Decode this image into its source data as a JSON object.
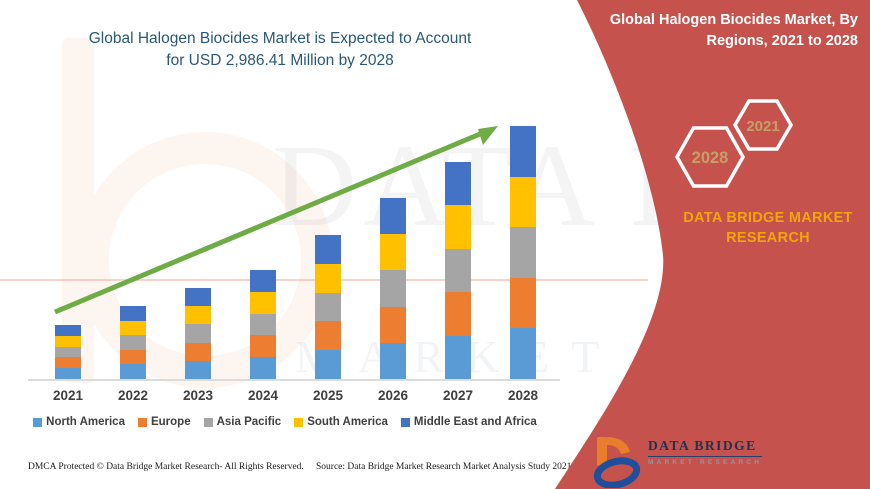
{
  "header": {
    "left_title_line1": "Global Halogen Biocides Market is Expected to Account",
    "left_title_line2": "for USD 2,986.41 Million by 2028",
    "right_title_line1": "Global Halogen Biocides Market, By",
    "right_title_line2": "Regions, 2021 to 2028"
  },
  "side_panel": {
    "hexagon_large_label": "2028",
    "hexagon_small_label": "2021",
    "brand_line1": "DATA BRIDGE MARKET",
    "brand_line2": "RESEARCH"
  },
  "logo": {
    "name": "DATA BRIDGE",
    "subtitle": "MARKET RESEARCH"
  },
  "watermark": {
    "line1": "DATA BRIDGE",
    "line2": "MARKET RESEARCH"
  },
  "footer": {
    "left": "DMCA Protected © Data Bridge Market Research- All Rights Reserved.",
    "source": "Source: Data Bridge Market Research Market Analysis Study 2021"
  },
  "colors": {
    "panel_red": "#C5524C",
    "title_blue": "#2B5876",
    "arrow_green": "#6FAC46",
    "axis_gray": "#DCDCDC",
    "hexagon_year_gold": "#C4A066",
    "brand_gold": "#F2A50C"
  },
  "chart_data": {
    "type": "bar",
    "stacked": true,
    "title": "Global Halogen Biocides Market is Expected to Account for USD 2,986.41 Million by 2028",
    "categories": [
      "2021",
      "2022",
      "2023",
      "2024",
      "2025",
      "2026",
      "2027",
      "2028"
    ],
    "series": [
      {
        "name": "North America",
        "color": "#5B9BD5",
        "values": [
          10.8,
          14.6,
          18.2,
          21.8,
          28.8,
          36.2,
          43.4,
          50.6
        ]
      },
      {
        "name": "Europe",
        "color": "#ED7D31",
        "values": [
          10.8,
          14.6,
          18.2,
          21.8,
          28.8,
          36.2,
          43.4,
          50.6
        ]
      },
      {
        "name": "Asia Pacific",
        "color": "#A5A5A5",
        "values": [
          10.8,
          14.6,
          18.2,
          21.8,
          28.8,
          36.2,
          43.4,
          50.6
        ]
      },
      {
        "name": "South America",
        "color": "#FFC000",
        "values": [
          10.8,
          14.6,
          18.2,
          21.8,
          28.8,
          36.2,
          43.4,
          50.6
        ]
      },
      {
        "name": "Middle East and Africa",
        "color": "#4472C4",
        "values": [
          10.8,
          14.6,
          18.2,
          21.8,
          28.8,
          36.2,
          43.4,
          50.6
        ]
      }
    ],
    "stack_totals": [
      54,
      73,
      91,
      109,
      144,
      181,
      217,
      253
    ],
    "units": "relative height units (chart displays no numeric value axis; regional segments are approximately equal fifths of each stack)",
    "value_axis_visible": false,
    "grid": false,
    "legend_position": "bottom",
    "trend_arrow": {
      "present": true,
      "direction": "up-right",
      "color": "#6FAC46"
    }
  }
}
